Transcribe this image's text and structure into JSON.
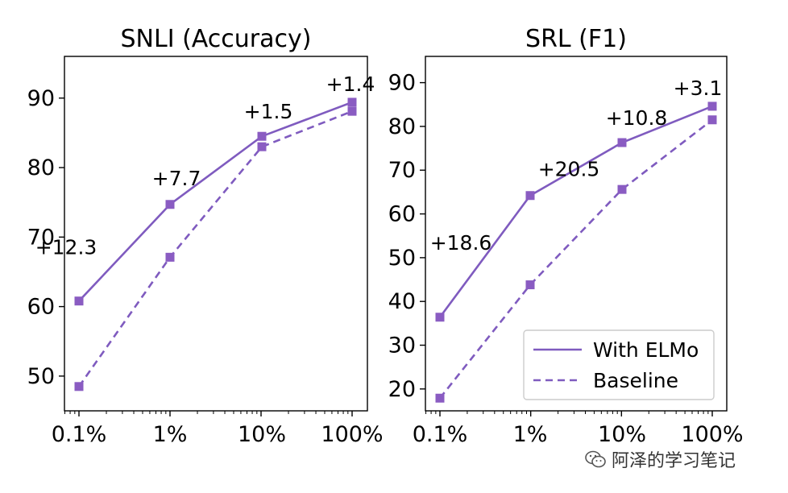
{
  "colors": {
    "series": "#7f5bbf",
    "marker": "#8a5cc2"
  },
  "legend": {
    "labels": [
      "With ELMo",
      "Baseline"
    ],
    "placement": "lower-right",
    "panel": 1
  },
  "watermark": {
    "text": "阿泽的学习笔记",
    "icon": "wechat-icon"
  },
  "chart_data": [
    {
      "type": "line",
      "title": "SNLI (Accuracy)",
      "categories": [
        "0.1%",
        "1%",
        "10%",
        "100%"
      ],
      "x": [
        0.1,
        1,
        10,
        100
      ],
      "xscale": "log",
      "ylim": [
        45,
        96
      ],
      "yticks": [
        50,
        60,
        70,
        80,
        90
      ],
      "series": [
        {
          "name": "With ELMo",
          "style": "solid",
          "values": [
            60.8,
            74.7,
            84.5,
            89.4
          ]
        },
        {
          "name": "Baseline",
          "style": "dashed",
          "values": [
            48.5,
            67.1,
            83.0,
            88.1
          ]
        }
      ],
      "annotations": [
        "+12.3",
        "+7.7",
        "+1.5",
        "+1.4"
      ]
    },
    {
      "type": "line",
      "title": "SRL (F1)",
      "categories": [
        "0.1%",
        "1%",
        "10%",
        "100%"
      ],
      "x": [
        0.1,
        1,
        10,
        100
      ],
      "xscale": "log",
      "ylim": [
        15,
        96
      ],
      "yticks": [
        20,
        30,
        40,
        50,
        60,
        70,
        80,
        90
      ],
      "series": [
        {
          "name": "With ELMo",
          "style": "solid",
          "values": [
            36.4,
            64.2,
            76.3,
            84.6
          ]
        },
        {
          "name": "Baseline",
          "style": "dashed",
          "values": [
            17.9,
            43.8,
            65.6,
            81.5
          ]
        }
      ],
      "annotations": [
        "+18.6",
        "+20.5",
        "+10.8",
        "+3.1"
      ]
    }
  ]
}
